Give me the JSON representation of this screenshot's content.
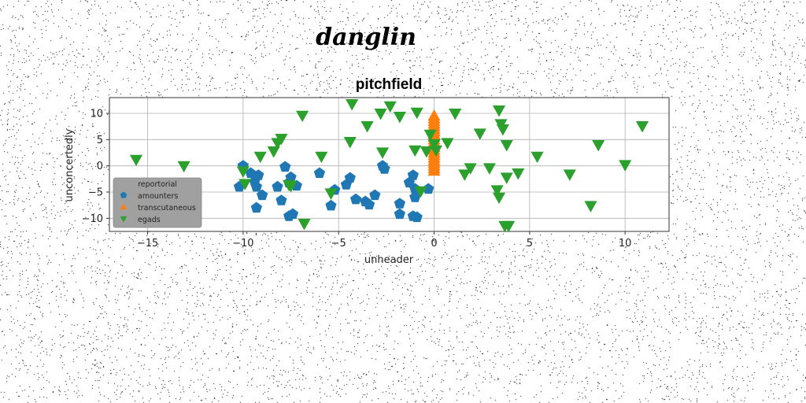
{
  "figure_title": "danglin",
  "chart_data": {
    "type": "scatter",
    "title": "pitchfield",
    "xlabel": "unheader",
    "ylabel": "unconcertedly",
    "xlim": [
      -17,
      12.3
    ],
    "ylim": [
      -12.5,
      13
    ],
    "xticks": [
      -15,
      -10,
      -5,
      0,
      5,
      10
    ],
    "yticks": [
      -10,
      -5,
      0,
      5,
      10
    ],
    "grid": true,
    "legend": {
      "title": "reportorial",
      "position": "lower-left"
    },
    "series": [
      {
        "name": "amounters",
        "marker": "pentagon",
        "color": "#1f77b4",
        "points": [
          [
            -10.0,
            0.0
          ],
          [
            -10.2,
            -4.0
          ],
          [
            -9.6,
            -1.4
          ],
          [
            -9.4,
            -3.0
          ],
          [
            -9.3,
            -4.0
          ],
          [
            -9.2,
            -1.8
          ],
          [
            -9.0,
            -5.6
          ],
          [
            -9.3,
            -8.0
          ],
          [
            -8.2,
            -4.0
          ],
          [
            -8.0,
            -6.6
          ],
          [
            -7.8,
            -0.2
          ],
          [
            -7.6,
            -3.2
          ],
          [
            -7.5,
            -2.2
          ],
          [
            -7.4,
            -9.2
          ],
          [
            -7.6,
            -9.6
          ],
          [
            -7.2,
            -3.8
          ],
          [
            -6.0,
            -1.4
          ],
          [
            -5.4,
            -7.6
          ],
          [
            -5.2,
            -4.6
          ],
          [
            -4.6,
            -3.6
          ],
          [
            -4.4,
            -2.3
          ],
          [
            -4.1,
            -6.4
          ],
          [
            -3.6,
            -6.8
          ],
          [
            -3.4,
            -7.4
          ],
          [
            -3.1,
            -5.6
          ],
          [
            -2.7,
            0.0
          ],
          [
            -2.6,
            -0.6
          ],
          [
            -1.8,
            -7.2
          ],
          [
            -1.8,
            -9.2
          ],
          [
            -1.3,
            -3.2
          ],
          [
            -1.1,
            -1.8
          ],
          [
            -1.0,
            -4.4
          ],
          [
            -1.0,
            -6.0
          ],
          [
            -1.1,
            -9.6
          ],
          [
            -0.9,
            -9.8
          ],
          [
            -0.3,
            -4.4
          ]
        ]
      },
      {
        "name": "transcutaneous",
        "marker": "triangle-up",
        "color": "#ff7f0e",
        "points": [
          [
            0.0,
            -1.0
          ],
          [
            0.0,
            -0.5
          ],
          [
            0.0,
            0.0
          ],
          [
            0.0,
            0.5
          ],
          [
            0.0,
            1.0
          ],
          [
            0.0,
            1.5
          ],
          [
            0.0,
            2.0
          ],
          [
            0.0,
            2.5
          ],
          [
            0.0,
            3.0
          ],
          [
            0.0,
            3.5
          ],
          [
            0.0,
            4.0
          ],
          [
            0.0,
            4.5
          ],
          [
            0.0,
            5.0
          ],
          [
            0.0,
            5.5
          ],
          [
            0.0,
            6.0
          ],
          [
            0.0,
            6.5
          ],
          [
            0.0,
            7.0
          ],
          [
            0.0,
            7.5
          ],
          [
            0.0,
            8.0
          ],
          [
            0.0,
            8.5
          ],
          [
            0.0,
            9.0
          ],
          [
            0.0,
            9.5
          ]
        ]
      },
      {
        "name": "egads",
        "marker": "triangle-down",
        "color": "#2ca02c",
        "points": [
          [
            -15.6,
            1.2
          ],
          [
            -13.1,
            0.0
          ],
          [
            -10.0,
            -1.0
          ],
          [
            -9.9,
            -3.4
          ],
          [
            -9.1,
            1.8
          ],
          [
            -8.4,
            2.8
          ],
          [
            -8.2,
            4.4
          ],
          [
            -8.0,
            5.2
          ],
          [
            -7.6,
            -3.6
          ],
          [
            -7.5,
            -3.8
          ],
          [
            -6.9,
            9.6
          ],
          [
            -6.8,
            -11.0
          ],
          [
            -5.9,
            1.8
          ],
          [
            -5.4,
            -5.2
          ],
          [
            -4.4,
            4.6
          ],
          [
            -4.3,
            11.8
          ],
          [
            -3.5,
            7.6
          ],
          [
            -2.8,
            10.0
          ],
          [
            -2.7,
            2.6
          ],
          [
            -2.3,
            11.4
          ],
          [
            -1.8,
            9.4
          ],
          [
            -1.0,
            3.0
          ],
          [
            -0.9,
            10.2
          ],
          [
            -0.7,
            -4.8
          ],
          [
            -0.4,
            2.8
          ],
          [
            -0.2,
            6.0
          ],
          [
            0.0,
            4.2
          ],
          [
            0.1,
            3.0
          ],
          [
            0.7,
            4.4
          ],
          [
            1.1,
            10.0
          ],
          [
            1.6,
            -1.6
          ],
          [
            1.9,
            -0.4
          ],
          [
            2.4,
            6.2
          ],
          [
            2.9,
            -0.4
          ],
          [
            3.3,
            -4.6
          ],
          [
            3.4,
            -6.0
          ],
          [
            3.4,
            10.6
          ],
          [
            3.5,
            8.0
          ],
          [
            3.6,
            7.0
          ],
          [
            3.7,
            -11.4
          ],
          [
            3.8,
            -2.2
          ],
          [
            3.8,
            4.0
          ],
          [
            3.9,
            -11.4
          ],
          [
            4.4,
            -1.4
          ],
          [
            5.4,
            1.8
          ],
          [
            7.1,
            -1.6
          ],
          [
            8.2,
            -7.6
          ],
          [
            8.6,
            4.0
          ],
          [
            10.0,
            0.2
          ],
          [
            10.9,
            7.6
          ]
        ]
      }
    ]
  }
}
